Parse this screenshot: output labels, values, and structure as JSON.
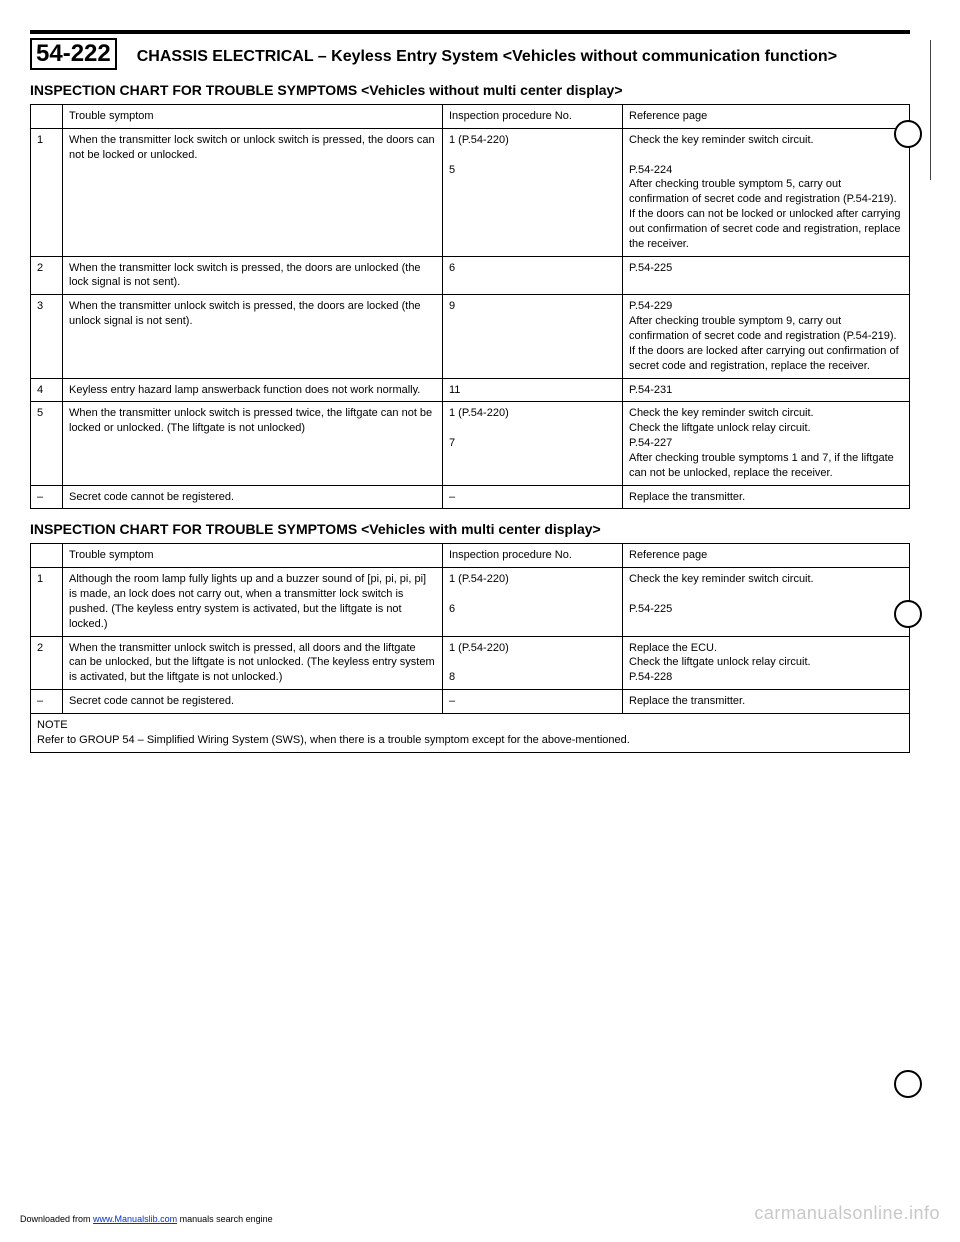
{
  "header": {
    "page_number": "54-222",
    "title": "CHASSIS ELECTRICAL – Keyless Entry System <Vehicles without communication function>"
  },
  "section1": {
    "title": "INSPECTION CHART FOR TROUBLE SYMPTOMS <Vehicles without multi center display>",
    "columns": [
      "",
      "Trouble symptom",
      "Inspection procedure No.",
      "Reference page"
    ],
    "rows": [
      {
        "no": "1",
        "symptom": "When the transmitter lock switch or unlock switch is pressed, the doors can not be locked or unlocked.",
        "insp": "1 (P.54-220)\n\n5",
        "ref": "Check the key reminder switch circuit.\n\nP.54-224\nAfter checking trouble symptom 5, carry out confirmation of secret code and registration (P.54-219).\nIf the doors can not be locked or unlocked after carrying out confirmation of secret code and registration, replace the receiver."
      },
      {
        "no": "2",
        "symptom": "When the transmitter lock switch is pressed, the doors are unlocked (the lock signal is not sent).",
        "insp": "6",
        "ref": "P.54-225"
      },
      {
        "no": "3",
        "symptom": "When the transmitter unlock switch is pressed, the doors are locked (the unlock signal is not sent).",
        "insp": "9",
        "ref": "P.54-229\nAfter checking trouble symptom 9, carry out confirmation of secret code and registration (P.54-219).\nIf the doors are locked after carrying out confirmation of secret code and registration, replace the receiver."
      },
      {
        "no": "4",
        "symptom": "Keyless entry hazard lamp answerback function does not work normally.",
        "insp": "11",
        "ref": "P.54-231"
      },
      {
        "no": "5",
        "symptom": "When the transmitter unlock switch is pressed twice, the liftgate can not be locked or unlocked. (The liftgate is not unlocked)",
        "insp": "1 (P.54-220)\n\n7",
        "ref": "Check the key reminder switch circuit.\nCheck the liftgate unlock relay circuit.\nP.54-227\nAfter checking trouble symptoms 1 and 7, if the liftgate can not be unlocked, replace the receiver."
      },
      {
        "no": "–",
        "symptom": "Secret code cannot be registered.",
        "insp": "–",
        "ref": "Replace the transmitter."
      }
    ]
  },
  "section2": {
    "title": "INSPECTION CHART FOR TROUBLE SYMPTOMS <Vehicles with multi center display>",
    "columns": [
      "",
      "Trouble symptom",
      "Inspection procedure No.",
      "Reference page"
    ],
    "rows": [
      {
        "no": "1",
        "symptom": "Although the room lamp fully lights up and a buzzer sound of [pi, pi, pi, pi] is made, an lock does not carry out, when a transmitter lock switch is pushed. (The keyless entry system is activated, but the liftgate is not locked.)",
        "insp": "1 (P.54-220)\n\n6",
        "ref": "Check the key reminder switch circuit.\n\nP.54-225"
      },
      {
        "no": "2",
        "symptom": "When the transmitter unlock switch is pressed, all doors and the liftgate can be unlocked, but the liftgate is not unlocked. (The keyless entry system is activated, but the liftgate is not unlocked.)",
        "insp": "1 (P.54-220)\n\n8",
        "ref": "Replace the ECU.\nCheck the liftgate unlock relay circuit.\nP.54-228"
      },
      {
        "no": "–",
        "symptom": "Secret code cannot be registered.",
        "insp": "–",
        "ref": "Replace the transmitter."
      }
    ],
    "note": "NOTE\nRefer to GROUP 54 – Simplified Wiring System (SWS), when there is a trouble symptom except for the above-mentioned."
  },
  "footer": {
    "download_prefix": "Downloaded from ",
    "download_link_text": "www.Manualslib.com",
    "download_suffix": " manuals search engine",
    "watermark": "carmanualsonline.info"
  }
}
